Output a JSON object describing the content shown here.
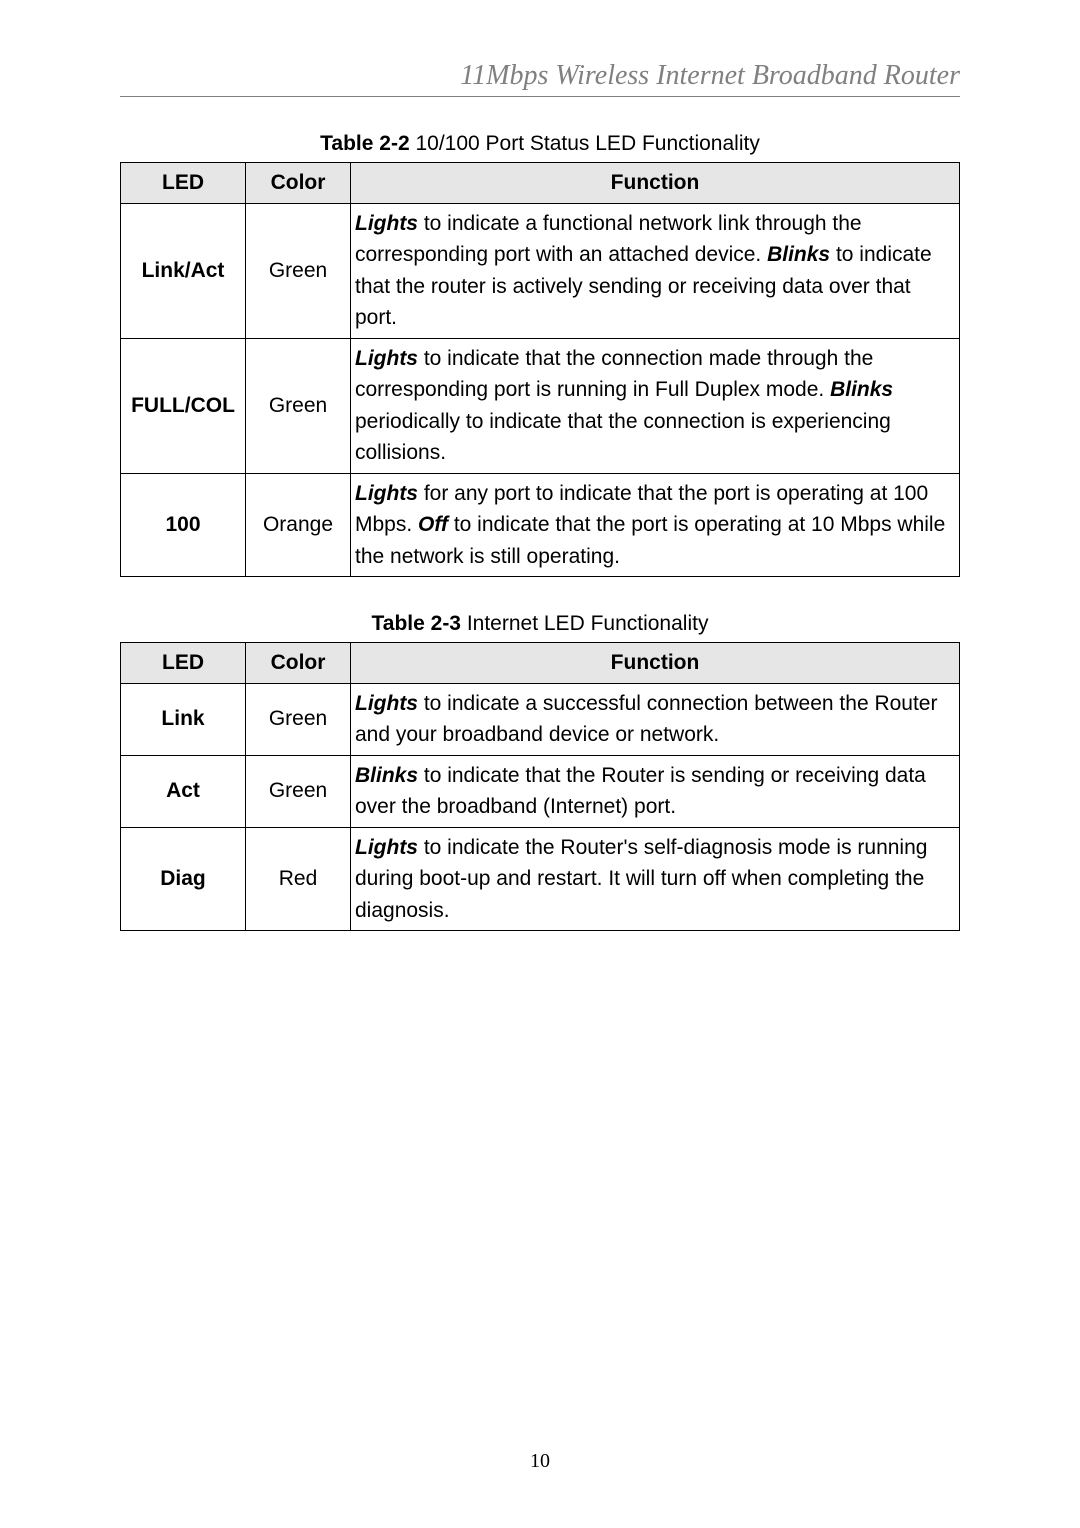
{
  "header_title": "11Mbps  Wireless  Internet  Broadband  Router",
  "table1": {
    "caption_bold": "Table 2-2",
    "caption_rest": " 10/100 Port Status LED Functionality",
    "columns": [
      "LED",
      "Color",
      "Function"
    ],
    "rows": [
      {
        "led": "Link/Act",
        "color": "Green",
        "func_parts": [
          {
            "em": "Lights",
            "text": " to indicate a functional network link through the corresponding port with an attached device."
          },
          {
            "em": "Blinks",
            "text": " to indicate that the router is actively sending or receiving data over that port."
          }
        ]
      },
      {
        "led": "FULL/COL",
        "color": "Green",
        "func_parts": [
          {
            "em": "Lights",
            "text": " to indicate that the connection made through the corresponding port is running in Full Duplex mode."
          },
          {
            "em": "Blinks",
            "text": " periodically to indicate that the connection is experiencing collisions."
          }
        ]
      },
      {
        "led": "100",
        "color": "Orange",
        "func_parts": [
          {
            "em": "Lights",
            "text": " for any port to indicate that the port is operating at 100 Mbps."
          },
          {
            "em": "Off",
            "text": " to indicate that the port is operating at 10 Mbps while the network is still operating."
          }
        ]
      }
    ]
  },
  "table2": {
    "caption_bold": "Table 2-3",
    "caption_rest": " Internet LED Functionality",
    "columns": [
      "LED",
      "Color",
      "Function"
    ],
    "rows": [
      {
        "led": "Link",
        "color": "Green",
        "func_parts": [
          {
            "em": "Lights",
            "text": " to indicate a successful connection between the Router and your broadband device or network."
          }
        ]
      },
      {
        "led": "Act",
        "color": "Green",
        "func_parts": [
          {
            "em": "Blinks",
            "text": " to indicate that the Router is sending or receiving data over the broadband (Internet) port."
          }
        ]
      },
      {
        "led": "Diag",
        "color": "Red",
        "func_parts": [
          {
            "em": "Lights",
            "text": " to indicate the Router's self-diagnosis mode is running during boot-up and restart. It will turn off when completing the diagnosis."
          }
        ]
      }
    ]
  },
  "page_number": "10"
}
